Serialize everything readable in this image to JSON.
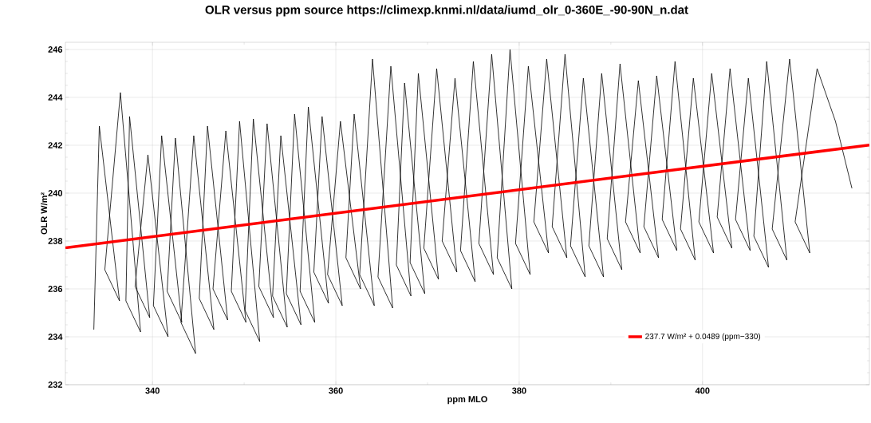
{
  "chart_data": {
    "type": "line",
    "title": "OLR versus ppm  source https://climexp.knmi.nl/data/iumd_olr_0-360E_-90-90N_n.dat",
    "xlabel": "ppm MLO",
    "ylabel": "OLR W/m²",
    "xlim": [
      330.5,
      418.2
    ],
    "ylim": [
      232,
      246.3
    ],
    "xticks": [
      340,
      360,
      380,
      400
    ],
    "yticks": [
      232,
      234,
      236,
      238,
      240,
      242,
      244,
      246
    ],
    "grid": true,
    "legend": "bottom right",
    "marker": "none",
    "line_style": "solid",
    "series": [
      {
        "color": "#000000",
        "x": [
          333.6,
          334.2,
          336.4,
          334.8,
          336.5,
          338.7,
          337.1,
          337.5,
          339.7,
          338.1,
          339.5,
          341.7,
          340.1,
          341.0,
          343.2,
          341.6,
          342.5,
          344.7,
          343.1,
          344.5,
          346.7,
          345.1,
          346.0,
          348.2,
          346.6,
          348.0,
          350.2,
          348.6,
          349.5,
          351.7,
          350.1,
          351.0,
          353.2,
          351.6,
          352.5,
          354.7,
          353.1,
          354.0,
          356.2,
          354.6,
          355.5,
          357.7,
          356.1,
          357.0,
          359.2,
          357.6,
          358.5,
          360.7,
          359.1,
          360.5,
          362.7,
          361.1,
          362.0,
          364.2,
          362.6,
          364.0,
          366.2,
          364.6,
          366.0,
          368.2,
          366.6,
          367.5,
          369.7,
          368.1,
          369.0,
          371.2,
          369.6,
          371.0,
          373.2,
          371.6,
          373.0,
          375.2,
          373.6,
          375.0,
          377.2,
          375.6,
          377.0,
          379.2,
          377.6,
          379.0,
          381.2,
          379.6,
          381.0,
          383.2,
          381.6,
          383.0,
          385.2,
          383.6,
          385.0,
          387.2,
          385.6,
          387.0,
          389.2,
          387.6,
          389.0,
          391.2,
          389.6,
          391.0,
          393.2,
          391.6,
          393.0,
          395.2,
          393.6,
          395.0,
          397.2,
          395.6,
          397.0,
          399.2,
          397.6,
          399.0,
          401.2,
          399.6,
          401.0,
          403.2,
          401.6,
          403.0,
          405.2,
          403.6,
          405.0,
          407.2,
          405.6,
          407.0,
          409.2,
          407.6,
          409.5,
          411.7,
          410.1,
          412.5,
          414.5,
          416.3
        ],
        "values": [
          234.3,
          242.8,
          235.5,
          236.8,
          244.2,
          234.2,
          235.5,
          243.2,
          234.8,
          236.1,
          241.6,
          234.0,
          235.3,
          242.4,
          234.6,
          235.9,
          242.3,
          233.3,
          234.6,
          242.4,
          234.3,
          235.6,
          242.8,
          234.7,
          236.0,
          242.6,
          234.6,
          235.9,
          243.0,
          233.8,
          235.1,
          243.1,
          234.8,
          236.1,
          242.9,
          234.4,
          235.7,
          242.4,
          234.5,
          235.8,
          243.3,
          234.6,
          235.9,
          243.6,
          235.4,
          236.7,
          243.2,
          235.3,
          236.6,
          243.0,
          236.0,
          237.3,
          243.3,
          235.3,
          236.6,
          245.6,
          235.2,
          236.5,
          245.3,
          235.7,
          237.0,
          244.6,
          235.8,
          237.1,
          245.0,
          236.4,
          237.7,
          245.2,
          236.7,
          238.0,
          244.8,
          236.3,
          237.6,
          245.5,
          236.6,
          237.9,
          245.8,
          236.0,
          237.3,
          246.0,
          236.6,
          237.9,
          245.3,
          237.5,
          238.8,
          245.6,
          237.3,
          238.6,
          245.8,
          236.5,
          237.8,
          244.8,
          236.5,
          237.8,
          245.0,
          236.8,
          238.1,
          245.4,
          237.5,
          238.8,
          244.7,
          237.3,
          238.6,
          244.9,
          237.6,
          238.9,
          245.5,
          237.2,
          238.5,
          244.8,
          237.5,
          238.8,
          245.0,
          237.7,
          239.0,
          245.2,
          237.6,
          238.9,
          244.8,
          236.9,
          238.2,
          245.5,
          237.2,
          238.5,
          245.6,
          237.5,
          238.8,
          245.2,
          243.0,
          240.2
        ]
      },
      {
        "name": "237.7 W/m² + 0.0489 (ppm−330)",
        "color": "#ff0000",
        "x": [
          330.5,
          418.2
        ],
        "values": [
          237.72,
          242.01
        ]
      }
    ]
  }
}
